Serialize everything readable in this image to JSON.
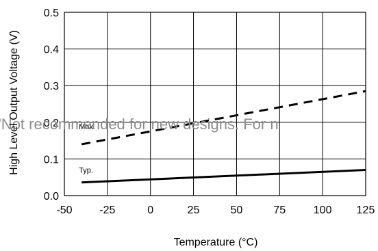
{
  "chart_data": {
    "type": "line",
    "xlabel": "Temperature (°C)",
    "ylabel": "High Level Output Voltage (V)",
    "xlim": [
      -50,
      125
    ],
    "ylim": [
      0.0,
      0.5
    ],
    "x_ticks": [
      "-50",
      "-25",
      "0",
      "25",
      "50",
      "75",
      "100",
      "125"
    ],
    "y_ticks": [
      "0.0",
      "0.1",
      "0.2",
      "0.3",
      "0.4",
      "0.5"
    ],
    "grid": true,
    "series": [
      {
        "name": "Max.",
        "style": "dashed",
        "color": "#000000",
        "x": [
          -40,
          125
        ],
        "y": [
          0.14,
          0.285
        ]
      },
      {
        "name": "Typ.",
        "style": "solid",
        "color": "#000000",
        "x": [
          -40,
          125
        ],
        "y": [
          0.036,
          0.07
        ]
      }
    ]
  },
  "watermark": "\"Not recommended for new designs. For n"
}
